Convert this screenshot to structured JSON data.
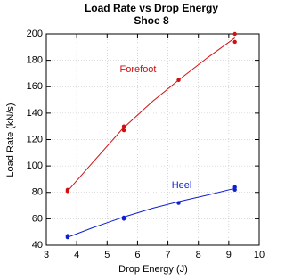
{
  "chart_data": {
    "type": "scatter",
    "title": "Load Rate vs Drop Energy",
    "subtitle": "Shoe 8",
    "x_label": "Drop Energy  (J)",
    "y_label": "Load Rate (kN/s)",
    "xlim": [
      3,
      10
    ],
    "xticks": [
      3,
      4,
      5,
      6,
      7,
      8,
      9,
      10
    ],
    "ylim": [
      40,
      200
    ],
    "yticks": [
      40,
      60,
      80,
      100,
      120,
      140,
      160,
      180,
      200
    ],
    "grid": true,
    "series": [
      {
        "name": "Forefoot",
        "color": "#d01010",
        "x": [
          3.7,
          3.7,
          5.55,
          5.55,
          7.35,
          9.2,
          9.2
        ],
        "values": [
          81,
          82,
          127,
          130,
          165,
          194,
          200
        ],
        "curve_x": [
          3.7,
          4.5,
          5.5,
          6.5,
          7.35,
          8.3,
          9.2
        ],
        "curve_values": [
          81,
          102,
          128,
          149,
          165,
          182,
          197
        ]
      },
      {
        "name": "Heel",
        "color": "#1020d0",
        "x": [
          3.7,
          3.7,
          5.55,
          5.55,
          7.35,
          9.2,
          9.2
        ],
        "values": [
          46,
          47,
          60,
          61,
          72,
          82,
          84
        ],
        "curve_x": [
          3.7,
          4.5,
          5.5,
          6.5,
          7.35,
          8.3,
          9.2
        ],
        "curve_values": [
          46,
          53,
          61,
          68,
          73,
          78,
          83
        ]
      }
    ]
  }
}
